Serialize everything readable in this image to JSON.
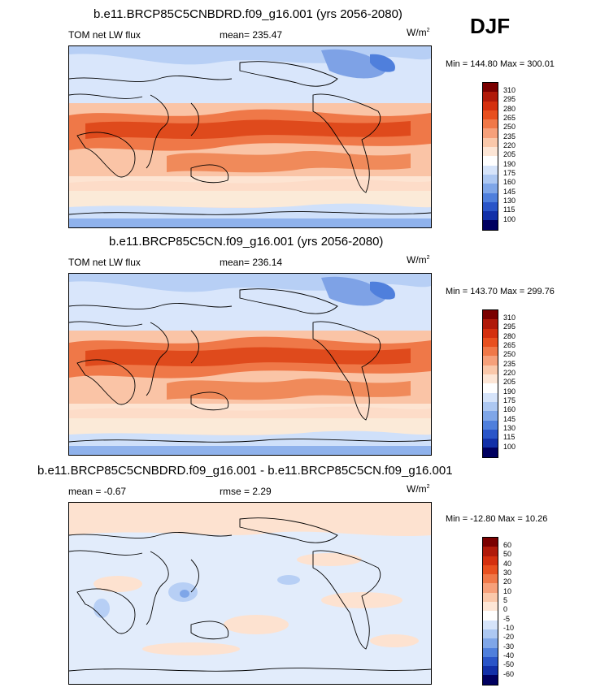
{
  "season": "DJF",
  "panels": [
    {
      "title": "b.e11.BRCP85C5CNBDRD.f09_g16.001 (yrs 2056-2080)",
      "left_label": "TOM net LW flux",
      "stat_label": "mean= 235.47",
      "units": "W/m",
      "units_sup": "2",
      "minmax": "Min = 144.80 Max = 300.01",
      "levels": [
        "310",
        "295",
        "280",
        "265",
        "250",
        "235",
        "220",
        "205",
        "190",
        "175",
        "160",
        "145",
        "130",
        "115",
        "100"
      ]
    },
    {
      "title": "b.e11.BRCP85C5CN.f09_g16.001 (yrs 2056-2080)",
      "left_label": "TOM net LW flux",
      "stat_label": "mean= 236.14",
      "units": "W/m",
      "units_sup": "2",
      "minmax": "Min = 143.70 Max = 299.76",
      "levels": [
        "310",
        "295",
        "280",
        "265",
        "250",
        "235",
        "220",
        "205",
        "190",
        "175",
        "160",
        "145",
        "130",
        "115",
        "100"
      ]
    },
    {
      "title": "b.e11.BRCP85C5CNBDRD.f09_g16.001 - b.e11.BRCP85C5CN.f09_g16.001",
      "left_label": "mean =  -0.67",
      "stat_label": "rmse =   2.29",
      "units": "W/m",
      "units_sup": "2",
      "minmax": "Min = -12.80 Max =  10.26",
      "levels": [
        "60",
        "50",
        "40",
        "30",
        "20",
        "10",
        "5",
        "0",
        "-5",
        "-10",
        "-20",
        "-30",
        "-40",
        "-50",
        "-60"
      ]
    }
  ],
  "colors": {
    "scale": [
      "#7a0000",
      "#b01a0a",
      "#d4300f",
      "#e8501f",
      "#f07848",
      "#f6a07a",
      "#fac8aa",
      "#fde6d6",
      "#ffffff",
      "#d6e4fa",
      "#adc8f2",
      "#7fa6e8",
      "#4f7fdc",
      "#2a55c8",
      "#1230a8",
      "#081a80",
      "#000060"
    ]
  }
}
